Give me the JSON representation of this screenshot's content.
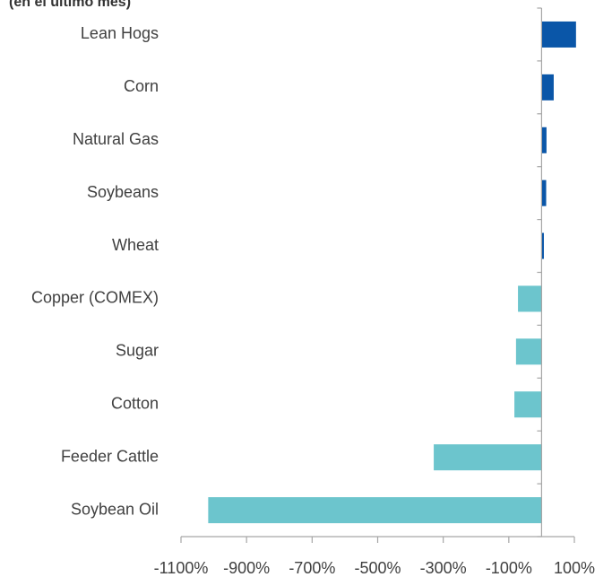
{
  "chart_data": {
    "type": "barh",
    "subtitle": "(en el último mes)",
    "categories": [
      "Lean Hogs",
      "Corn",
      "Natural Gas",
      "Soybeans",
      "Wheat",
      "Copper (COMEX)",
      "Sugar",
      "Cotton",
      "Feeder Cattle",
      "Soybean Oil"
    ],
    "values": [
      105,
      37,
      15,
      14,
      7,
      -72,
      -78,
      -83,
      -329,
      -1017
    ],
    "colors": [
      "#0a56a8",
      "#0a56a8",
      "#0a56a8",
      "#0a56a8",
      "#0a56a8",
      "#6cc5cd",
      "#6cc5cd",
      "#6cc5cd",
      "#6cc5cd",
      "#6cc5cd"
    ],
    "xlim": [
      -1100,
      100
    ],
    "xticks": [
      {
        "value": -1100,
        "label": "-1100%"
      },
      {
        "value": -900,
        "label": "-900%"
      },
      {
        "value": -700,
        "label": "-700%"
      },
      {
        "value": -500,
        "label": "-500%"
      },
      {
        "value": -300,
        "label": "-300%"
      },
      {
        "value": -100,
        "label": "-100%"
      },
      {
        "value": 100,
        "label": "100%"
      }
    ],
    "grid": false
  }
}
